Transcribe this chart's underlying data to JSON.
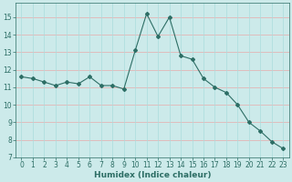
{
  "x": [
    0,
    1,
    2,
    3,
    4,
    5,
    6,
    7,
    8,
    9,
    10,
    11,
    12,
    13,
    14,
    15,
    16,
    17,
    18,
    19,
    20,
    21,
    22,
    23
  ],
  "y": [
    11.6,
    11.5,
    11.3,
    11.1,
    11.3,
    11.2,
    11.6,
    11.1,
    11.1,
    10.9,
    13.1,
    15.2,
    13.9,
    15.0,
    12.8,
    12.6,
    11.5,
    11.0,
    10.7,
    10.0,
    9.0,
    8.5,
    7.9,
    7.5
  ],
  "xlabel": "Humidex (Indice chaleur)",
  "xlim": [
    -0.5,
    23.5
  ],
  "ylim": [
    7,
    15.8
  ],
  "yticks": [
    7,
    8,
    9,
    10,
    11,
    12,
    13,
    14,
    15
  ],
  "xticks": [
    0,
    1,
    2,
    3,
    4,
    5,
    6,
    7,
    8,
    9,
    10,
    11,
    12,
    13,
    14,
    15,
    16,
    17,
    18,
    19,
    20,
    21,
    22,
    23
  ],
  "line_color": "#2d6e65",
  "marker": "D",
  "marker_size": 2.0,
  "bg_color": "#cceaea",
  "hgrid_color": "#e8aaaa",
  "vgrid_color": "#aadddd",
  "axes_color": "#2d6e65",
  "tick_fontsize": 5.5,
  "xlabel_fontsize": 6.5,
  "linewidth": 0.8
}
